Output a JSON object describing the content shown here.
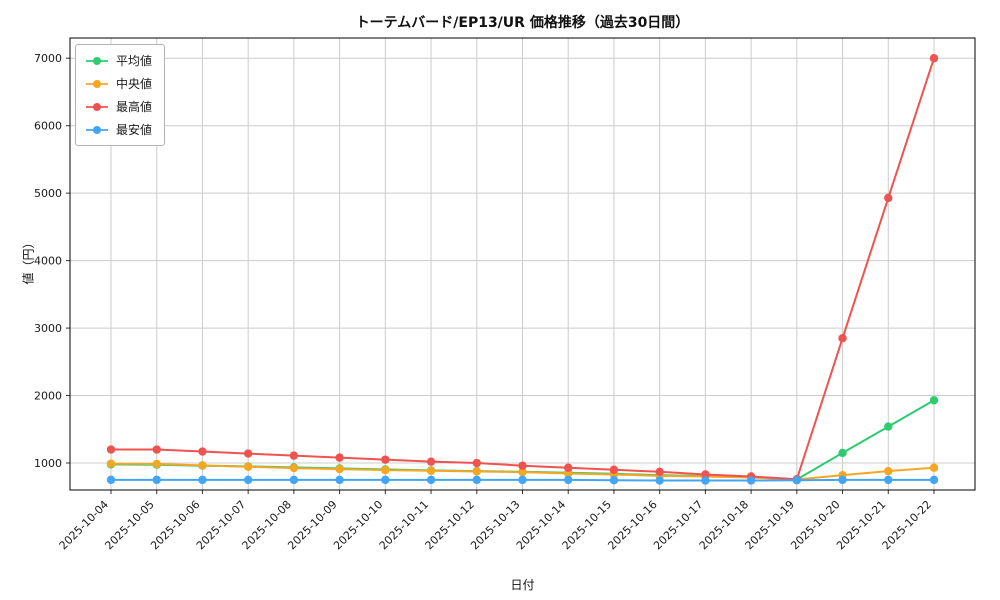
{
  "chart_data": {
    "type": "line",
    "title": "トーテムバード/EP13/UR 価格推移（過去30日間）",
    "xlabel": "日付",
    "ylabel": "値（円）",
    "grid": true,
    "legend_position": "upper-left",
    "ylim": [
      600,
      7300
    ],
    "yticks": [
      1000,
      2000,
      3000,
      4000,
      5000,
      6000,
      7000
    ],
    "x": [
      "2025-10-04",
      "2025-10-05",
      "2025-10-06",
      "2025-10-07",
      "2025-10-08",
      "2025-10-09",
      "2025-10-10",
      "2025-10-11",
      "2025-10-12",
      "2025-10-13",
      "2025-10-14",
      "2025-10-15",
      "2025-10-16",
      "2025-10-17",
      "2025-10-18",
      "2025-10-19",
      "2025-10-20",
      "2025-10-21",
      "2025-10-22"
    ],
    "series": [
      {
        "id": "average",
        "name": "平均値",
        "color": "#2ecc71",
        "values": [
          980,
          975,
          960,
          950,
          935,
          920,
          905,
          890,
          880,
          870,
          855,
          840,
          820,
          805,
          790,
          755,
          1150,
          1540,
          1930
        ]
      },
      {
        "id": "median",
        "name": "中央値",
        "color": "#f5a623",
        "values": [
          990,
          985,
          965,
          945,
          925,
          910,
          895,
          885,
          875,
          865,
          845,
          830,
          810,
          800,
          785,
          755,
          820,
          880,
          930
        ]
      },
      {
        "id": "max",
        "name": "最高値",
        "color": "#ef5350",
        "values": [
          1200,
          1200,
          1170,
          1140,
          1110,
          1080,
          1050,
          1020,
          1000,
          960,
          930,
          900,
          870,
          830,
          800,
          760,
          2850,
          4930,
          7000
        ]
      },
      {
        "id": "min",
        "name": "最安値",
        "color": "#42a5f5",
        "values": [
          750,
          750,
          750,
          750,
          750,
          750,
          750,
          750,
          750,
          750,
          750,
          745,
          740,
          740,
          740,
          745,
          750,
          750,
          750
        ]
      }
    ]
  }
}
